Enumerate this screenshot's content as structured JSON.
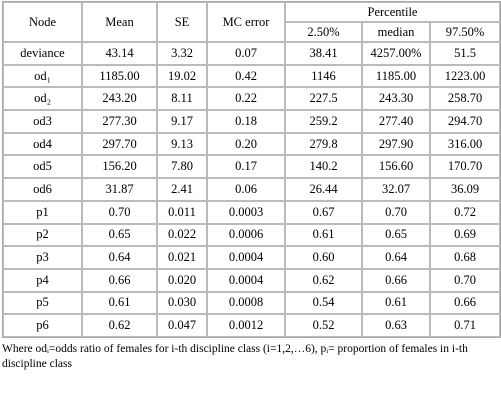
{
  "table": {
    "header": [
      "Node",
      "Mean",
      "SE",
      "MC error",
      "Percentile"
    ],
    "subheader": [
      "2.50%",
      "median",
      "97.50%"
    ],
    "rows": [
      [
        "deviance",
        "43.14",
        "3.32",
        "0.07",
        "38.41",
        "4257.00%",
        "51.5"
      ],
      [
        "od₁",
        "1185.00",
        "19.02",
        "0.42",
        "1146",
        "1185.00",
        "1223.00"
      ],
      [
        "od₂",
        "243.20",
        "8.11",
        "0.22",
        "227.5",
        "243.30",
        "258.70"
      ],
      [
        "od3",
        "277.30",
        "9.17",
        "0.18",
        "259.2",
        "277.40",
        "294.70"
      ],
      [
        "od4",
        "297.70",
        "9.13",
        "0.20",
        "279.8",
        "297.90",
        "316.00"
      ],
      [
        "od5",
        "156.20",
        "7.80",
        "0.17",
        "140.2",
        "156.60",
        "170.70"
      ],
      [
        "od6",
        "31.87",
        "2.41",
        "0.06",
        "26.44",
        "32.07",
        "36.09"
      ],
      [
        "p1",
        "0.70",
        "0.011",
        "0.0003",
        "0.67",
        "0.70",
        "0.72"
      ],
      [
        "p2",
        "0.65",
        "0.022",
        "0.0006",
        "0.61",
        "0.65",
        "0.69"
      ],
      [
        "p3",
        "0.64",
        "0.021",
        "0.0004",
        "0.60",
        "0.64",
        "0.68"
      ],
      [
        "p4",
        "0.66",
        "0.020",
        "0.0004",
        "0.62",
        "0.66",
        "0.70"
      ],
      [
        "p5",
        "0.61",
        "0.030",
        "0.0008",
        "0.54",
        "0.61",
        "0.66"
      ],
      [
        "p6",
        "0.62",
        "0.047",
        "0.0012",
        "0.52",
        "0.63",
        "0.71"
      ]
    ]
  },
  "footnote": "Where odᵢ=odds ratio of females for i-th discipline class (i=1,2,…6), pᵢ= proportion of females in i-th discipline class"
}
